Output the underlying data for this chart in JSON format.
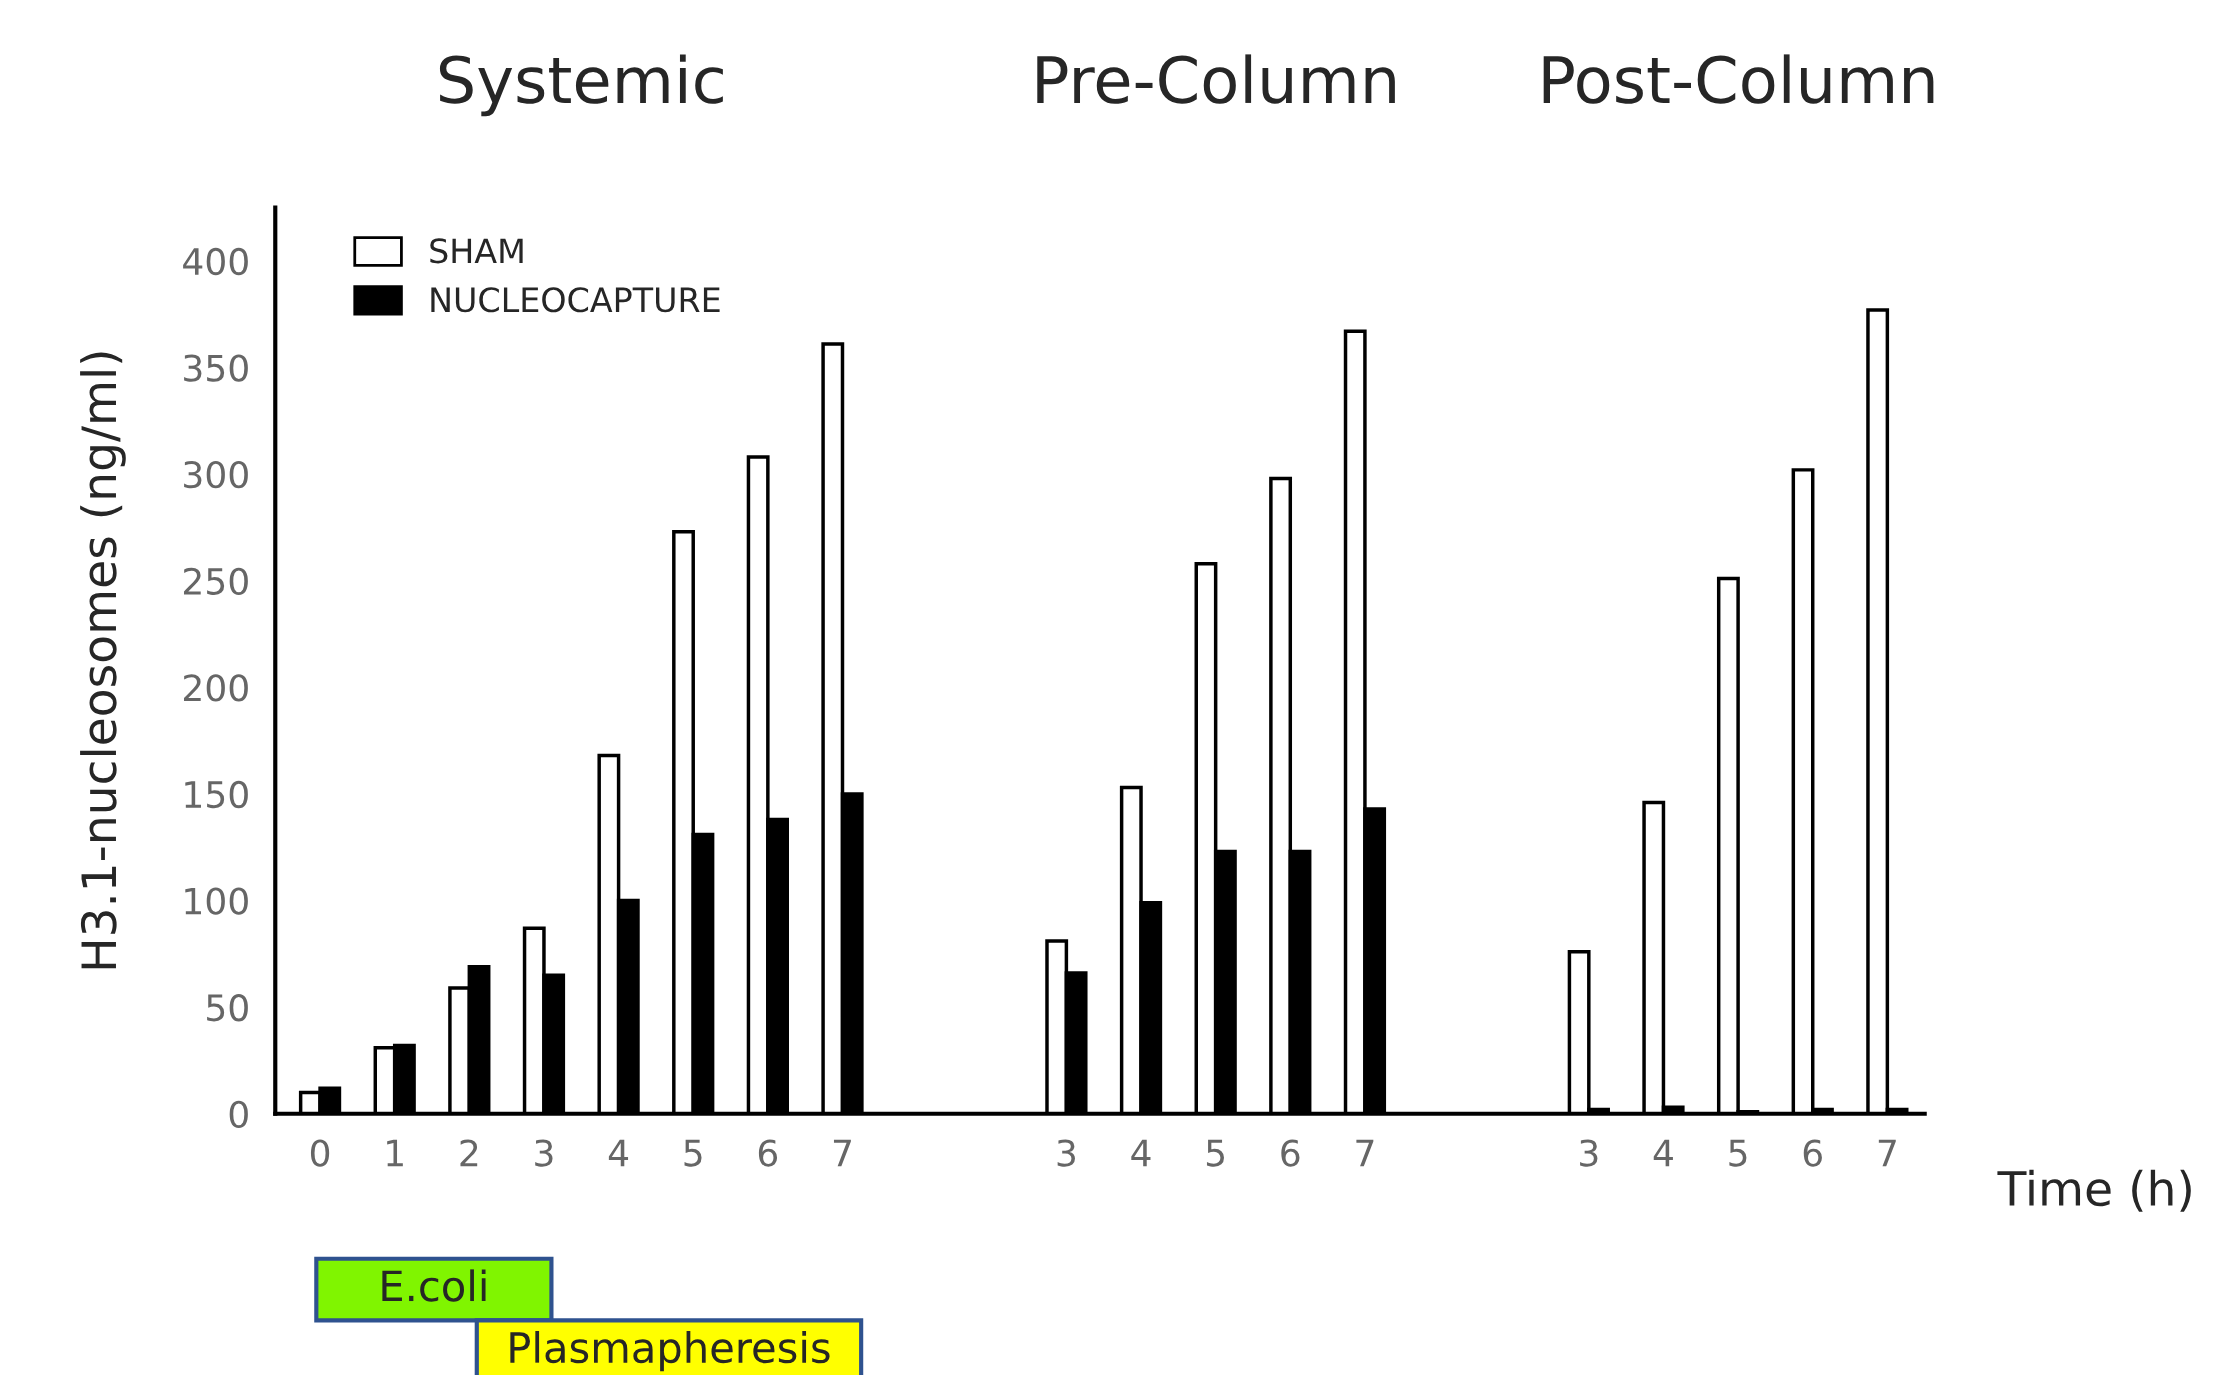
{
  "chart_data": {
    "type": "bar",
    "annotations": [
      "Systemic",
      "Pre-Column",
      "Post-Column",
      "E.coli",
      "Plasmapheresis"
    ],
    "xlabel": "Time (h)",
    "ylabel": "H3.1-nucleosomes (ng/ml)",
    "categories": [
      "0",
      "1",
      "2",
      "3",
      "4",
      "5",
      "6",
      "7",
      null,
      null,
      "3",
      "4",
      "5",
      "6",
      "7",
      null,
      null,
      "3",
      "4",
      "5",
      "6",
      "7"
    ],
    "series": [
      {
        "name": "SHAM",
        "color": "#ffffff",
        "values": [
          10,
          31,
          59,
          87,
          168,
          273,
          308,
          361,
          null,
          null,
          81,
          153,
          258,
          298,
          367,
          null,
          null,
          76,
          146,
          251,
          302,
          377
        ]
      },
      {
        "name": "NUCLEOCAPTURE",
        "color": "#000000",
        "values": [
          12,
          32,
          69,
          65,
          100,
          131,
          138,
          150,
          null,
          null,
          66,
          99,
          123,
          123,
          143,
          null,
          null,
          2,
          3,
          1,
          2,
          2
        ]
      }
    ],
    "ylim": [
      0,
      425
    ],
    "yticks": [
      0,
      50,
      100,
      150,
      200,
      250,
      300,
      350,
      400
    ],
    "grid": false,
    "legend": "top left"
  }
}
